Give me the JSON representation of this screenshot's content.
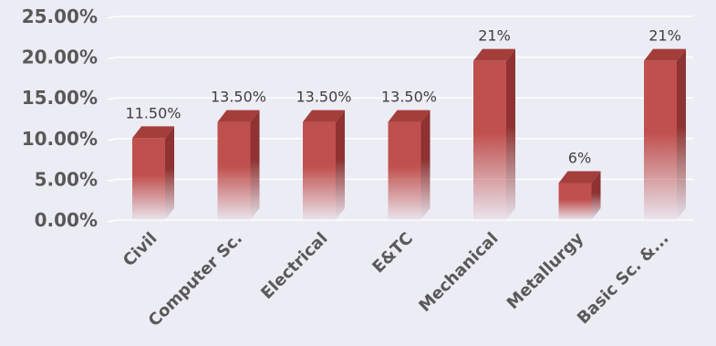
{
  "colors": {
    "background": "#ececf5",
    "bar_front": "#c0504d",
    "bar_side": "#8e3331",
    "bar_top": "#a43e3b",
    "text": "#595959",
    "grid": "#ffffff"
  },
  "chart_data": {
    "type": "bar",
    "style": "3d-column",
    "title": "",
    "xlabel": "",
    "ylabel": "",
    "categories": [
      "Civil",
      "Computer Sc.",
      "Electrical",
      "E&TC",
      "Mechanical",
      "Metallurgy",
      "Basic Sc. &..."
    ],
    "values": [
      11.5,
      13.5,
      13.5,
      13.5,
      21,
      6,
      21
    ],
    "data_labels": [
      "11.50%",
      "13.50%",
      "13.50%",
      "13.50%",
      "21%",
      "6%",
      "21%"
    ],
    "ylim": [
      0,
      25
    ],
    "yticks": [
      0,
      5,
      10,
      15,
      20,
      25
    ],
    "ytick_labels": [
      "0.00%",
      "5.00%",
      "10.00%",
      "15.00%",
      "20.00%",
      "25.00%"
    ],
    "grid": true,
    "legend": "none"
  }
}
